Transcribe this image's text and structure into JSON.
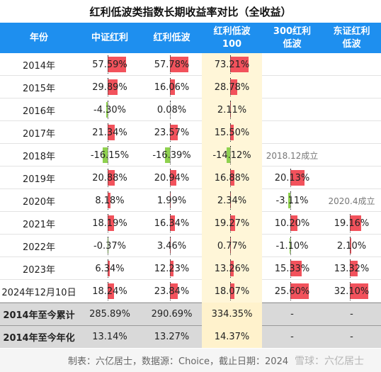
{
  "title": "红利低波类指数长期收益率对比（全收益）",
  "table": {
    "header": [
      [
        "年份"
      ],
      [
        "中证红利"
      ],
      [
        "红利低波"
      ],
      [
        "红利低波",
        "100"
      ],
      [
        "300红利",
        "低波"
      ],
      [
        "东证红利",
        "低波"
      ]
    ],
    "rows": [
      [
        "2014年",
        "57.59%",
        "57.78%",
        "73.21%",
        null,
        null
      ],
      [
        "2015年",
        "29.89%",
        "16.06%",
        "28.78%",
        null,
        null
      ],
      [
        "2016年",
        "-4.30%",
        "0.08%",
        "2.11%",
        null,
        null
      ],
      [
        "2017年",
        "21.34%",
        "23.57%",
        "15.50%",
        null,
        null
      ],
      [
        "2018年",
        "-16.15%",
        "-16.39%",
        "-14.12%",
        "2018.12成立",
        null
      ],
      [
        "2019年",
        "20.88%",
        "20.94%",
        "16.88%",
        "20.13%",
        null
      ],
      [
        "2020年",
        "8.18%",
        "1.99%",
        "2.34%",
        "-3.11%",
        "2020.4成立"
      ],
      [
        "2021年",
        "18.19%",
        "16.34%",
        "19.27%",
        "10.20%",
        "19.16%"
      ],
      [
        "2022年",
        "-0.37%",
        "3.46%",
        "0.77%",
        "-1.10%",
        "2.10%"
      ],
      [
        "2023年",
        "6.34%",
        "12.23%",
        "13.26%",
        "15.33%",
        "13.32%"
      ],
      [
        "2024年12月10日",
        "18.24%",
        "23.84%",
        "18.07%",
        "25.60%",
        "32.10%"
      ]
    ],
    "totals": [
      [
        "2014年至今累计",
        "285.89%",
        "290.69%",
        "334.35%",
        "-",
        "-"
      ],
      [
        "2014年至今年化",
        "13.14%",
        "13.27%",
        "14.37%",
        "-",
        "-"
      ]
    ]
  },
  "footer": "制表：六亿居士，数据源：Choice，截止日期：2024",
  "watermark": "雪球：六亿居士"
}
